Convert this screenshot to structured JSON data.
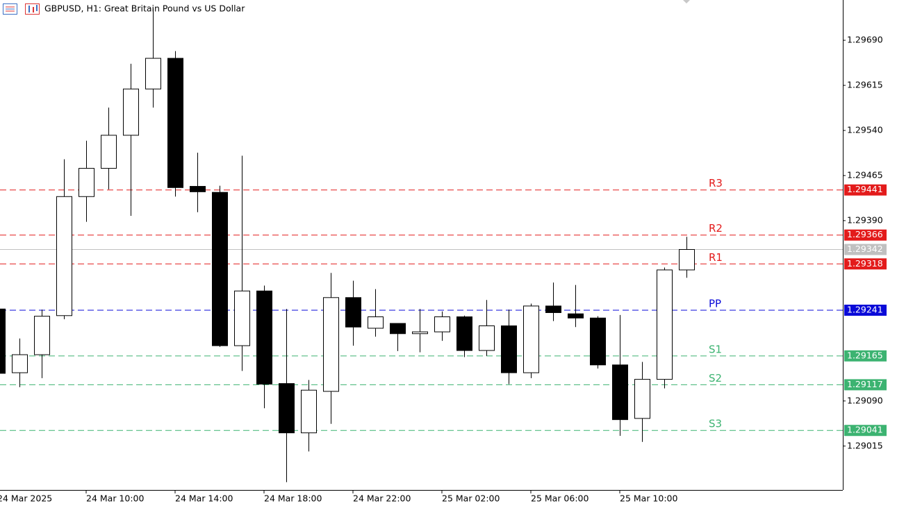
{
  "chart_data": {
    "type": "candlestick",
    "title": "GBPUSD, H1:  Great Britain Pound vs US Dollar",
    "categories": [
      "24 Mar 2025",
      null,
      null,
      null,
      "24 Mar 10:00",
      null,
      null,
      null,
      "24 Mar 14:00",
      null,
      null,
      null,
      "24 Mar 18:00",
      null,
      null,
      null,
      "24 Mar 22:00",
      null,
      null,
      null,
      "25 Mar 02:00",
      null,
      null,
      null,
      "25 Mar 06:00",
      null,
      null,
      null,
      "25 Mar 10:00",
      null,
      null,
      null
    ],
    "open": [
      1.29243,
      1.29137,
      1.29167,
      1.29232,
      1.2943,
      1.29477,
      1.29532,
      1.29609,
      1.2966,
      1.29447,
      1.29437,
      1.29182,
      1.29273,
      1.29119,
      1.29037,
      1.29106,
      1.29262,
      1.29211,
      1.29219,
      1.29202,
      1.29205,
      1.2923,
      1.29174,
      1.29215,
      1.29137,
      1.29248,
      1.29235,
      1.29228,
      1.2915,
      1.29061,
      1.29126,
      1.29308
    ],
    "high": [
      1.29243,
      1.29194,
      1.29242,
      1.29492,
      1.29523,
      1.29578,
      1.29651,
      1.29743,
      1.29672,
      1.29503,
      1.29448,
      1.29498,
      1.29282,
      1.29243,
      1.29125,
      1.29303,
      1.2929,
      1.29276,
      1.29219,
      1.29243,
      1.29239,
      1.29232,
      1.29258,
      1.29242,
      1.29252,
      1.29287,
      1.29283,
      1.29231,
      1.29233,
      1.29155,
      1.29312,
      1.29363
    ],
    "low": [
      1.29136,
      1.29113,
      1.29128,
      1.29226,
      1.29388,
      1.29442,
      1.29398,
      1.29578,
      1.2943,
      1.29404,
      1.2918,
      1.2914,
      1.29078,
      1.28955,
      1.29006,
      1.29052,
      1.29182,
      1.29197,
      1.29173,
      1.29171,
      1.2919,
      1.29163,
      1.29165,
      1.29118,
      1.29128,
      1.29223,
      1.29213,
      1.29144,
      1.29032,
      1.29022,
      1.29111,
      1.29295
    ],
    "close": [
      1.29136,
      1.29167,
      1.29231,
      1.2943,
      1.29477,
      1.29532,
      1.29609,
      1.2966,
      1.29445,
      1.29438,
      1.29182,
      1.29273,
      1.29118,
      1.29037,
      1.29108,
      1.29262,
      1.29213,
      1.2923,
      1.29202,
      1.29205,
      1.2923,
      1.29174,
      1.29215,
      1.29137,
      1.29248,
      1.29237,
      1.29228,
      1.2915,
      1.29059,
      1.29126,
      1.29308,
      1.29342
    ],
    "up_color": "#ffffff",
    "down_color": "#000000",
    "ylim": [
      1.28942,
      1.29757
    ],
    "yticks": [
      {
        "value": 1.2969,
        "label": "1.29690"
      },
      1.29615,
      {
        "value": 1.2954,
        "label": "1.29540"
      },
      1.29465,
      {
        "value": 1.2939,
        "label": "1.29390"
      },
      {
        "value": 1.2909,
        "label": "1.29090"
      },
      1.29015
    ],
    "levels": [
      {
        "name": "R3",
        "value": 1.29441,
        "color": "#e31b1b"
      },
      {
        "name": "R2",
        "value": 1.29366,
        "color": "#e31b1b"
      },
      {
        "name": "R1",
        "value": 1.29318,
        "color": "#e31b1b"
      },
      {
        "name": "PP",
        "value": 1.29241,
        "color": "#0a0ad8"
      },
      {
        "name": "S1",
        "value": 1.29165,
        "color": "#3cb371"
      },
      {
        "name": "S2",
        "value": 1.29117,
        "color": "#3cb371"
      },
      {
        "name": "S3",
        "value": 1.29041,
        "color": "#3cb371"
      }
    ],
    "current_price": 1.29342,
    "current_color": "#c0c0c0"
  }
}
